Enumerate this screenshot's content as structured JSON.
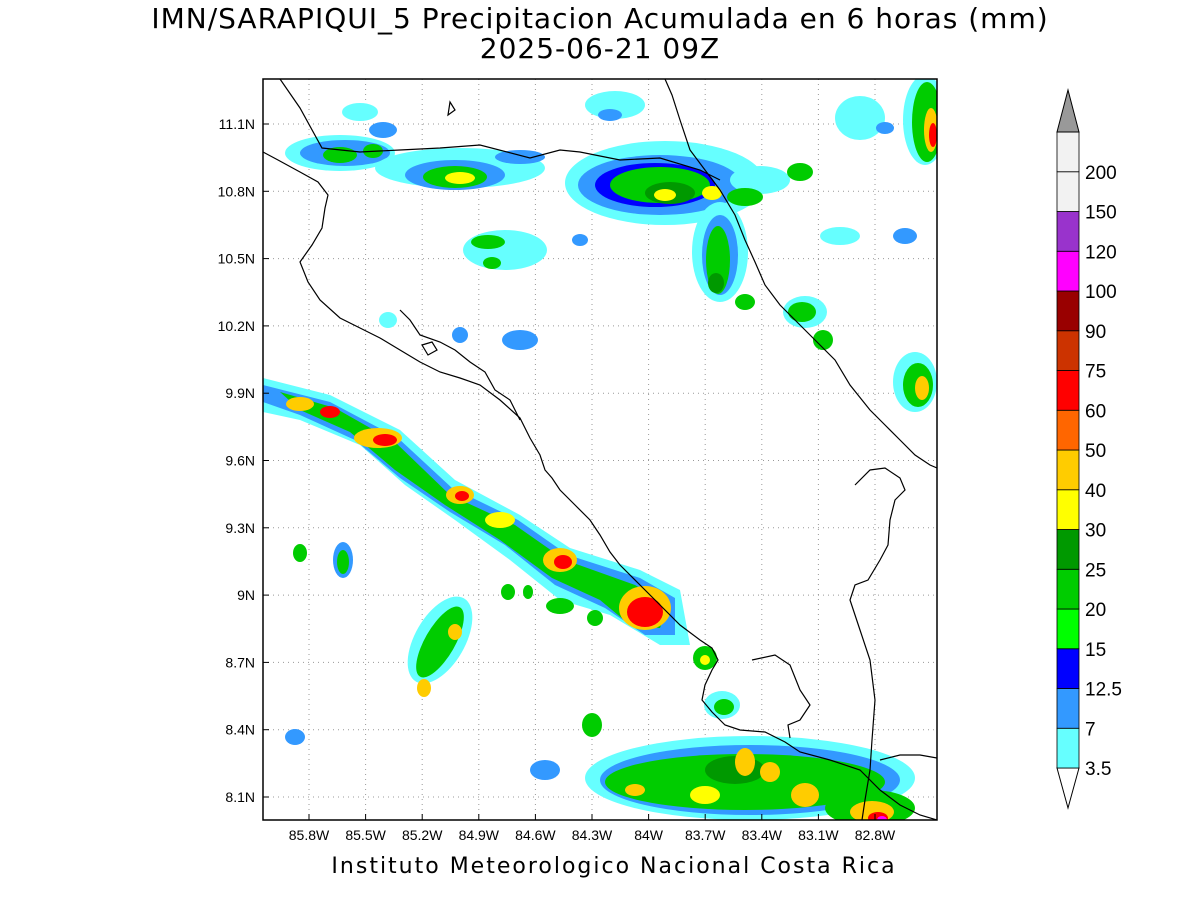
{
  "title": "IMN/SARAPIQUI_5 Precipitacion Acumulada en 6 horas (mm)",
  "subtitle": "2025-06-21 09Z",
  "footer": "Instituto Meteorologico Nacional Costa Rica",
  "axes": {
    "lon_labels": [
      "85.8W",
      "85.5W",
      "85.2W",
      "84.9W",
      "84.6W",
      "84.3W",
      "84W",
      "83.7W",
      "83.4W",
      "83.1W",
      "82.8W"
    ],
    "lat_labels": [
      "11.1N",
      "10.8N",
      "10.5N",
      "10.2N",
      "9.9N",
      "9.6N",
      "9.3N",
      "9N",
      "8.7N",
      "8.4N",
      "8.1N"
    ],
    "lon_range": [
      -86.05,
      -83.05
    ],
    "lat_range": [
      8.0,
      11.3
    ]
  },
  "legend": {
    "levels": [
      {
        "label": "3.5",
        "color": "#66ffff"
      },
      {
        "label": "7",
        "color": "#3399ff"
      },
      {
        "label": "12.5",
        "color": "#0000ff"
      },
      {
        "label": "15",
        "color": "#00ff00"
      },
      {
        "label": "20",
        "color": "#00cc00"
      },
      {
        "label": "25",
        "color": "#009900"
      },
      {
        "label": "30",
        "color": "#ffff00"
      },
      {
        "label": "40",
        "color": "#ffcc00"
      },
      {
        "label": "50",
        "color": "#ff6600"
      },
      {
        "label": "60",
        "color": "#ff0000"
      },
      {
        "label": "75",
        "color": "#cc3300"
      },
      {
        "label": "90",
        "color": "#990000"
      },
      {
        "label": "100",
        "color": "#ff00ff"
      },
      {
        "label": "120",
        "color": "#9933cc"
      },
      {
        "label": "150",
        "color": "#f2f2f2"
      },
      {
        "label": "200",
        "color": "#999999"
      }
    ]
  }
}
